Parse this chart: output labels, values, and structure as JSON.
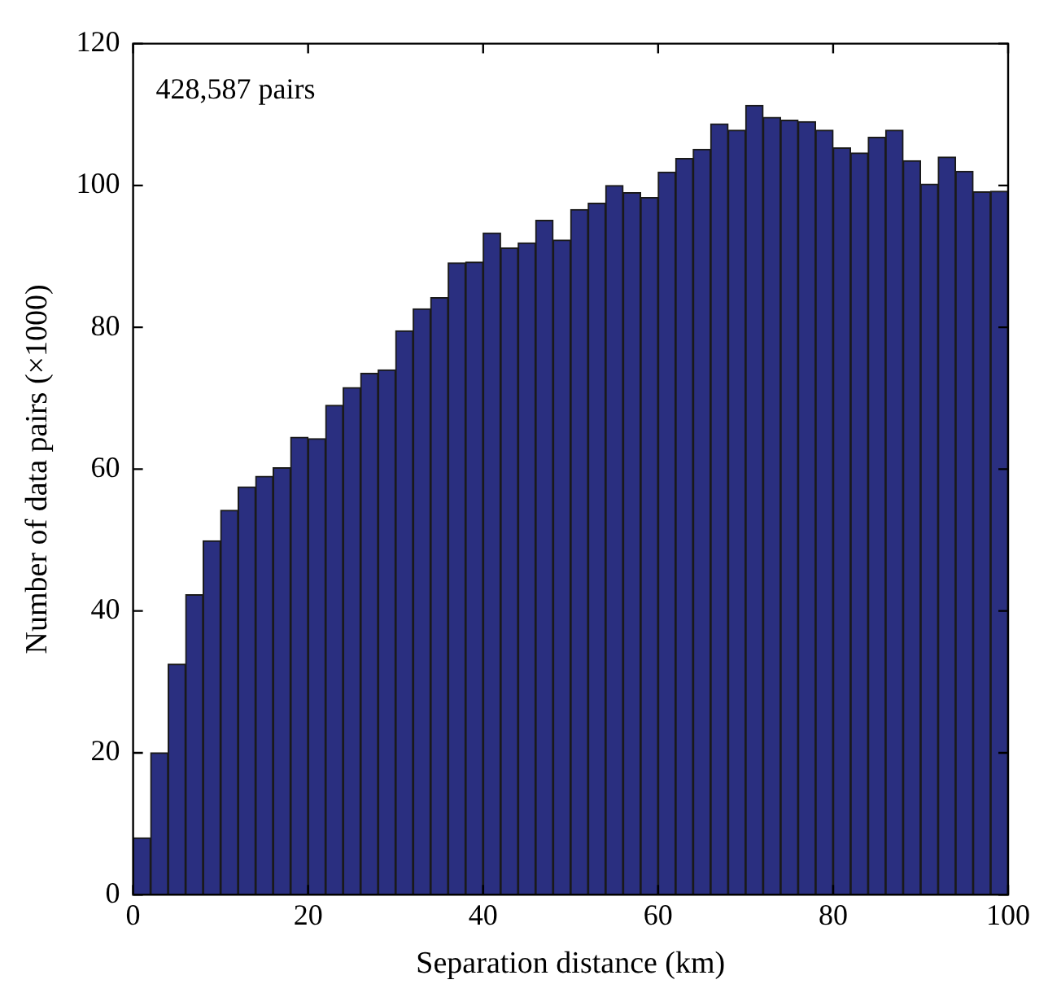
{
  "chart_data": {
    "type": "histogram",
    "xlabel": "Separation distance (km)",
    "ylabel": "Number of data pairs (×1000)",
    "annotations": [
      "428,587 pairs"
    ],
    "bins": [
      0,
      2,
      4,
      6,
      8,
      10,
      12,
      14,
      16,
      18,
      20,
      22,
      24,
      26,
      28,
      30,
      32,
      34,
      36,
      38,
      40,
      42,
      44,
      46,
      48,
      50,
      52,
      54,
      56,
      58,
      60,
      62,
      64,
      66,
      68,
      70,
      72,
      74,
      76,
      78,
      80,
      82,
      84,
      86,
      88,
      90,
      92,
      94,
      96,
      98,
      100
    ],
    "values": [
      8,
      20,
      32.5,
      42.3,
      49.9,
      54.2,
      57.5,
      59,
      60.2,
      64.5,
      64.3,
      69,
      71.5,
      73.5,
      74,
      79.5,
      82.6,
      84.2,
      89.1,
      89.2,
      93.3,
      91.2,
      91.9,
      95.1,
      92.3,
      96.6,
      97.5,
      100,
      99,
      98.3,
      101.9,
      103.8,
      105.1,
      108.7,
      107.8,
      111.3,
      109.6,
      109.2,
      109,
      107.8,
      105.3,
      104.6,
      106.8,
      107.8,
      103.5,
      100.2,
      104,
      102,
      99.1,
      99.2
    ],
    "color": "#2a2f80",
    "xlim": [
      0,
      100
    ],
    "xticks": [
      0,
      20,
      40,
      60,
      80,
      100
    ],
    "ylim": [
      0,
      120
    ],
    "yticks": [
      0,
      20,
      40,
      60,
      80,
      100,
      120
    ],
    "grid": false,
    "legend": false
  }
}
